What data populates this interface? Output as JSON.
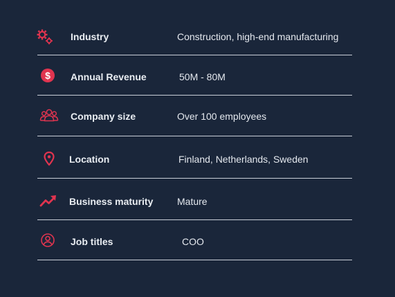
{
  "colors": {
    "background": "#1a263a",
    "accent": "#e0344f",
    "text": "#e9edf2",
    "divider": "#c9cfd8"
  },
  "rows": [
    {
      "icon": "gears-icon",
      "label": "Industry",
      "value": "Construction, high-end manufacturing"
    },
    {
      "icon": "dollar-coin-icon",
      "label": "Annual Revenue",
      "value": "50M - 80M"
    },
    {
      "icon": "users-group-icon",
      "label": "Company size",
      "value": "Over 100 employees"
    },
    {
      "icon": "location-pin-icon",
      "label": "Location",
      "value": "Finland, Netherlands, Sweden"
    },
    {
      "icon": "trending-up-icon",
      "label": "Business maturity",
      "value": "Mature"
    },
    {
      "icon": "user-circle-icon",
      "label": "Job titles",
      "value": "COO"
    }
  ]
}
